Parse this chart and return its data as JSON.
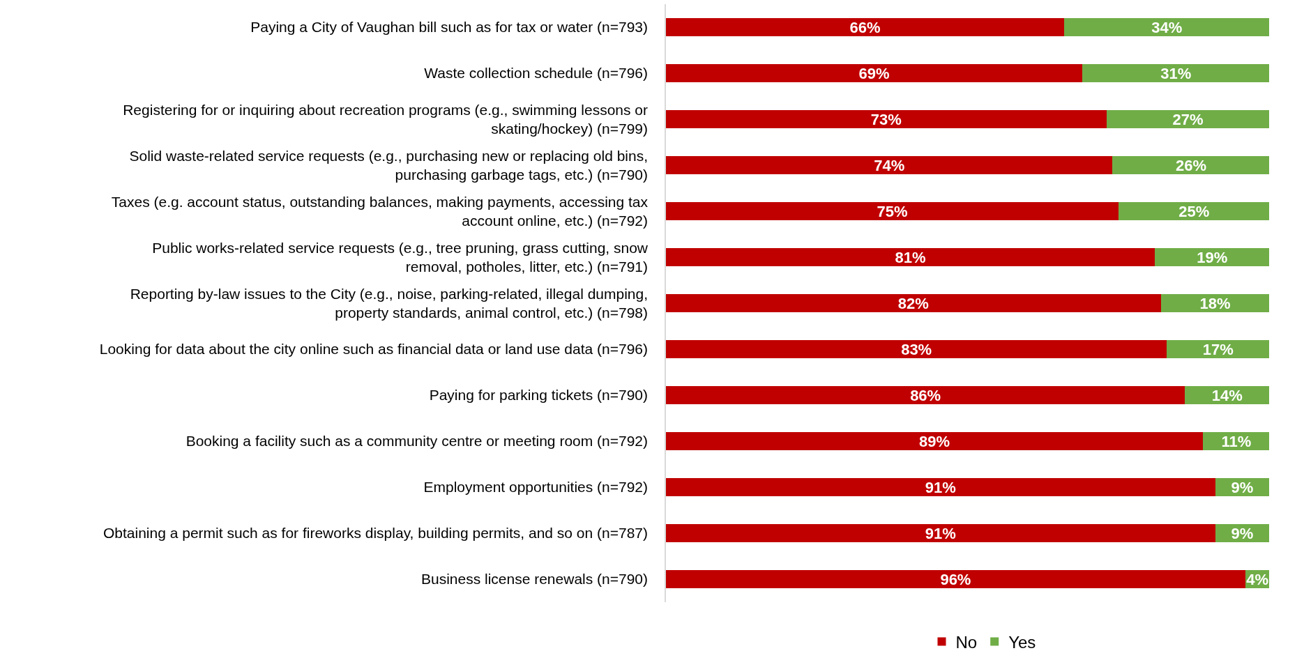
{
  "chart_data": {
    "type": "bar",
    "orientation": "horizontal",
    "stacked": true,
    "tick_labels": "y",
    "legend": "bottom",
    "categories": [
      "Paying a City of Vaughan bill such as for tax or water (n=793)",
      "Waste collection schedule (n=796)",
      "Registering for or inquiring about recreation programs (e.g., swimming lessons or skating/hockey) (n=799)",
      "Solid waste-related service requests (e.g., purchasing new or replacing old bins, purchasing garbage tags, etc.) (n=790)",
      "Taxes (e.g. account status, outstanding balances, making payments, accessing tax account online, etc.) (n=792)",
      "Public works-related service requests (e.g., tree pruning, grass cutting, snow removal, potholes, litter, etc.) (n=791)",
      "Reporting by-law issues to the City (e.g., noise, parking-related, illegal dumping, property standards, animal control, etc.) (n=798)",
      "Looking for data about the city online such as financial data or land use data (n=796)",
      "Paying for parking tickets (n=790)",
      "Booking a facility such as a community centre or meeting room (n=792)",
      "Employment opportunities (n=792)",
      "Obtaining a permit such as for fireworks display, building permits, and so on (n=787)",
      "Business license renewals (n=790)"
    ],
    "series": [
      {
        "name": "No",
        "color": "#c00000",
        "values": [
          66,
          69,
          73,
          74,
          75,
          81,
          82,
          83,
          86,
          89,
          91,
          91,
          96
        ],
        "value_labels": [
          "66%",
          "69%",
          "73%",
          "74%",
          "75%",
          "81%",
          "82%",
          "83%",
          "86%",
          "89%",
          "91%",
          "91%",
          "96%"
        ]
      },
      {
        "name": "Yes",
        "color": "#70ad47",
        "values": [
          34,
          31,
          27,
          26,
          25,
          19,
          18,
          17,
          14,
          11,
          9,
          9,
          4
        ],
        "value_labels": [
          "34%",
          "31%",
          "27%",
          "26%",
          "25%",
          "19%",
          "18%",
          "17%",
          "14%",
          "11%",
          "9%",
          "9%",
          "4%"
        ]
      }
    ]
  }
}
